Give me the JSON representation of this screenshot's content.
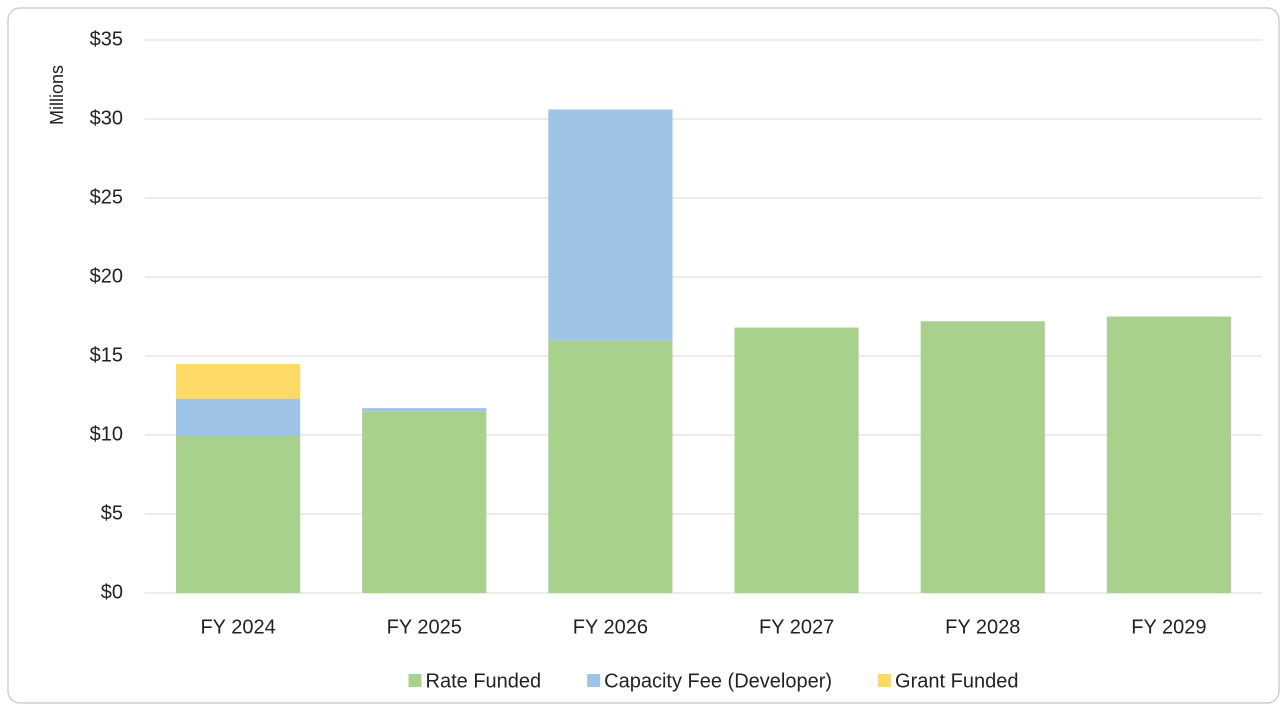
{
  "chart_data": {
    "type": "bar",
    "stacked": true,
    "y_label": "Millions",
    "categories": [
      "FY 2024",
      "FY 2025",
      "FY 2026",
      "FY 2027",
      "FY 2028",
      "FY 2029"
    ],
    "series": [
      {
        "name": "Rate Funded",
        "color": "#a9d18e",
        "values": [
          10.0,
          11.5,
          16.0,
          16.8,
          17.2,
          17.5
        ]
      },
      {
        "name": "Capacity Fee (Developer)",
        "color": "#9dc3e6",
        "values": [
          2.3,
          0.2,
          14.6,
          0,
          0,
          0
        ]
      },
      {
        "name": "Grant Funded",
        "color": "#ffd966",
        "values": [
          2.2,
          0,
          0,
          0,
          0,
          0
        ]
      }
    ],
    "ylim": [
      0,
      35
    ],
    "yticks": [
      {
        "value": 0,
        "label": "$0"
      },
      {
        "value": 5,
        "label": "$5"
      },
      {
        "value": 10,
        "label": "$10"
      },
      {
        "value": 15,
        "label": "$15"
      },
      {
        "value": 20,
        "label": "$20"
      },
      {
        "value": 25,
        "label": "$25"
      },
      {
        "value": 30,
        "label": "$30"
      },
      {
        "value": 35,
        "label": "$35"
      }
    ],
    "grid": true,
    "legend": "bottom"
  }
}
